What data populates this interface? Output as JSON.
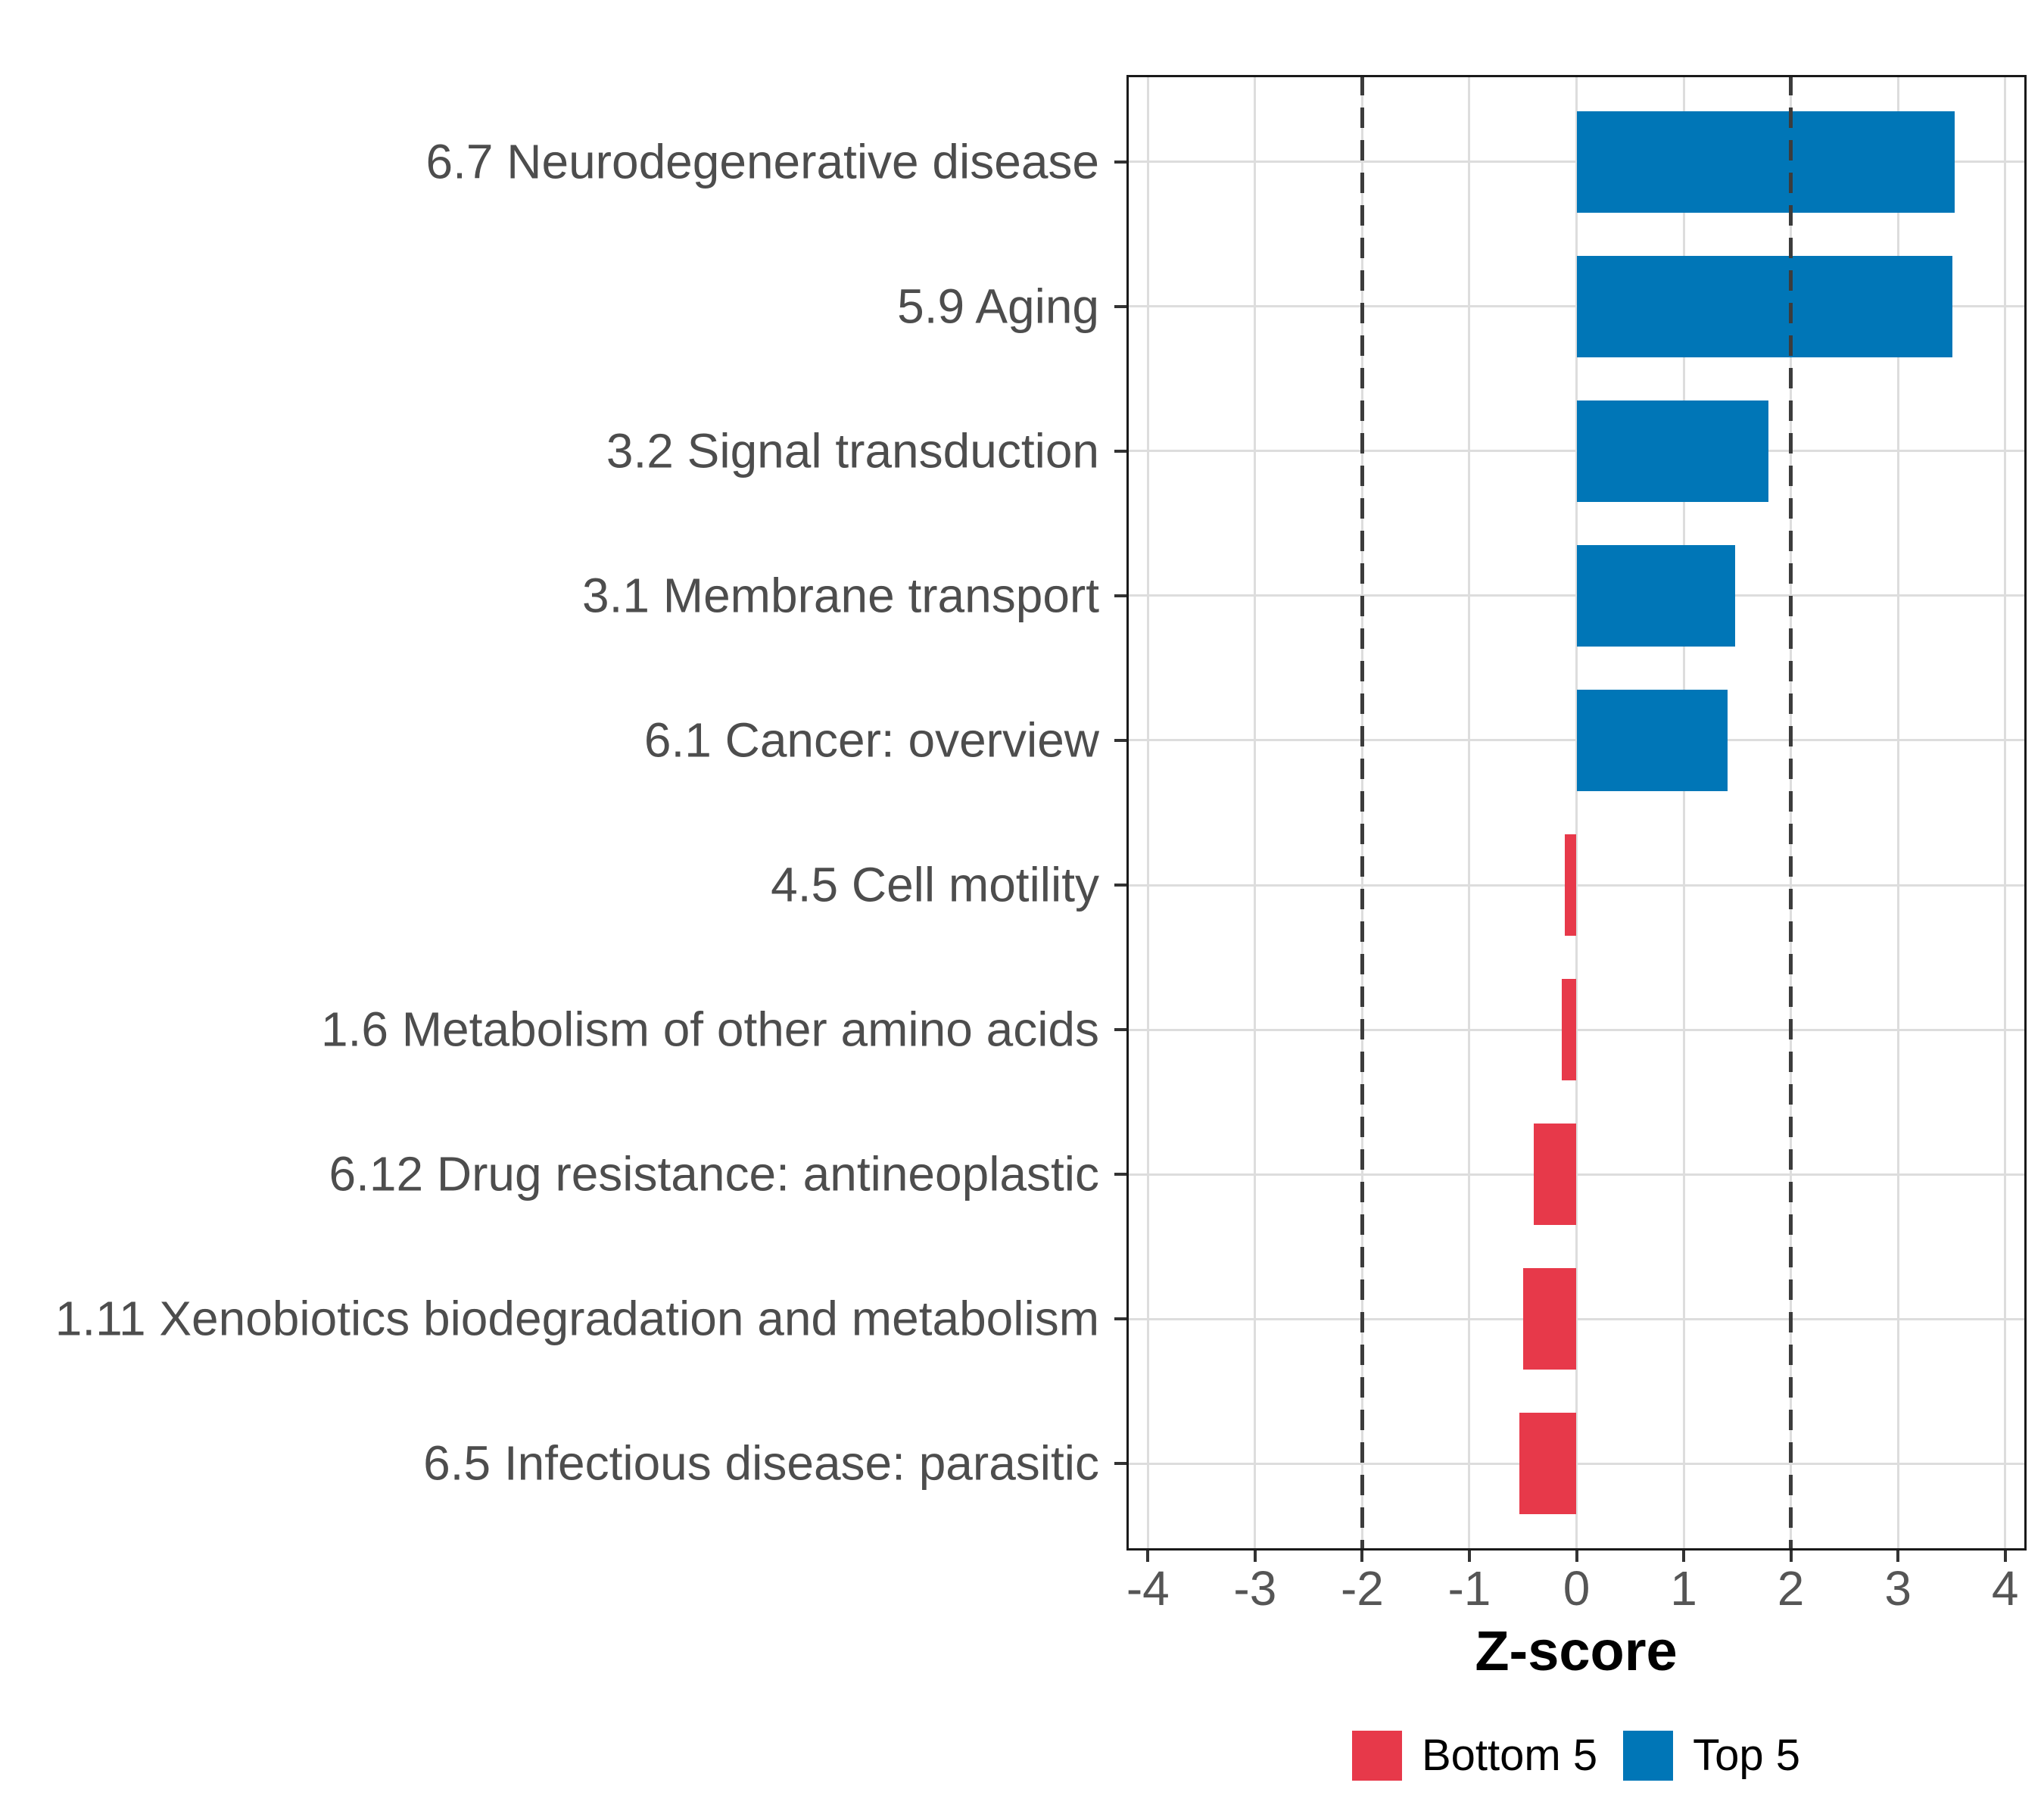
{
  "chart_data": {
    "type": "bar",
    "orientation": "horizontal",
    "title": "",
    "xlabel": "Z-score",
    "categories": [
      "6.7 Neurodegenerative disease",
      "5.9 Aging",
      "3.2 Signal transduction",
      "3.1 Membrane transport",
      "6.1 Cancer: overview",
      "4.5 Cell motility",
      "1.6 Metabolism of other amino acids",
      "6.12 Drug resistance: antineoplastic",
      "1.11 Xenobiotics biodegradation and metabolism",
      "6.5 Infectious disease: parasitic"
    ],
    "values": [
      3.53,
      3.51,
      1.79,
      1.48,
      1.41,
      -0.11,
      -0.14,
      -0.4,
      -0.5,
      -0.53
    ],
    "groups": [
      "Top 5",
      "Top 5",
      "Top 5",
      "Top 5",
      "Top 5",
      "Bottom 5",
      "Bottom 5",
      "Bottom 5",
      "Bottom 5",
      "Bottom 5"
    ],
    "xlim": [
      -4.2,
      4.2
    ],
    "xticks": [
      -4,
      -3,
      -2,
      -1,
      0,
      1,
      2,
      3,
      4
    ],
    "reference_lines": [
      -2,
      2
    ],
    "grid": "major",
    "bar_width_fraction": 0.7,
    "legend": {
      "position": "bottom",
      "items": [
        {
          "label": "Bottom 5",
          "color": "#E7394A"
        },
        {
          "label": "Top 5",
          "color": "#0076B7"
        }
      ]
    },
    "colors": {
      "panel_border": "#1a1a1a",
      "gridline": "#dddddd",
      "reference_line": "#3c3c3c",
      "tick": "#333333",
      "axis_text": "#4d4d4d",
      "axis_title": "#000000"
    }
  }
}
